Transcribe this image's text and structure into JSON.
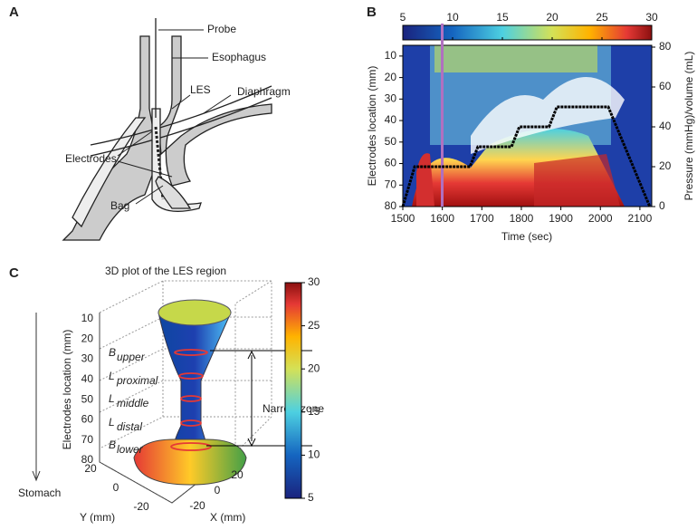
{
  "panel_a": {
    "label": "A",
    "probe": "Probe",
    "esophagus": "Esophagus",
    "les": "LES",
    "diaphragm": "Diaphragm",
    "electrodes": "Electrodes",
    "bag": "Bag"
  },
  "panel_b": {
    "label": "B",
    "xlabel": "Time (sec)",
    "ylabel": "Electrodes location (mm)",
    "y2label": "Pressure (mmHg)/volume (mL)",
    "xlim": [
      1500,
      2130
    ],
    "xticks": [
      1500,
      1600,
      1700,
      1800,
      1900,
      2000,
      2100
    ],
    "ylim": [
      5,
      80
    ],
    "yticks": [
      10,
      20,
      30,
      40,
      50,
      60,
      70,
      80
    ],
    "y2lim": [
      0,
      80
    ],
    "y2ticks": [
      0,
      20,
      40,
      60,
      80
    ],
    "clim": [
      5,
      30
    ],
    "cticks": [
      5,
      10,
      15,
      20,
      25,
      30
    ],
    "volume": {
      "x": [
        1500,
        1530,
        1670,
        1690,
        1775,
        1795,
        1870,
        1890,
        2020,
        2125
      ],
      "values": [
        0,
        20,
        20,
        30,
        30,
        40,
        40,
        50,
        50,
        0
      ]
    }
  },
  "panel_c": {
    "label": "C",
    "title": "3D plot of the LES region",
    "ylabel": "Electrodes location (mm)",
    "zlim": [
      10,
      80
    ],
    "zticks": [
      10,
      20,
      30,
      40,
      50,
      60,
      70,
      80
    ],
    "zones": [
      {
        "letter": "B",
        "sub": "upper"
      },
      {
        "letter": "L",
        "sub": "proximal"
      },
      {
        "letter": "L",
        "sub": "middle"
      },
      {
        "letter": "L",
        "sub": "distal"
      },
      {
        "letter": "B",
        "sub": "lower"
      }
    ],
    "narrow": "Narrow zone",
    "stomach": "Stomach",
    "xlabel": "X (mm)",
    "ylabel2": "Y (mm)",
    "xticks": [
      20,
      0,
      -20
    ],
    "yticks": [
      20,
      0,
      -20
    ],
    "clim": [
      5,
      30
    ],
    "cticks": [
      5,
      10,
      15,
      20,
      25,
      30
    ]
  }
}
